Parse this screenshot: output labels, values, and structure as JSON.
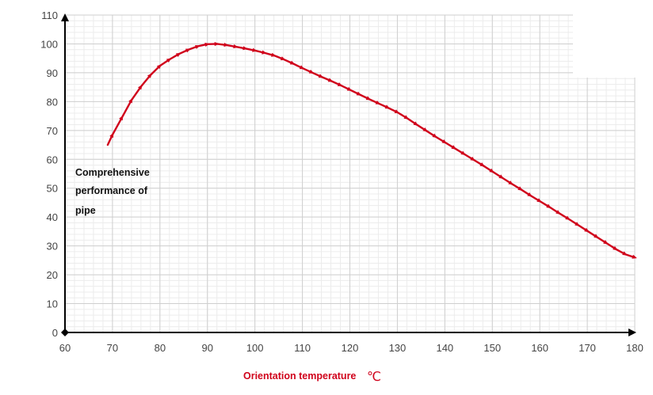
{
  "chart_data": {
    "type": "line",
    "title": "",
    "xlabel": "Orientation temperature",
    "xunit": "℃",
    "ylabel_lines": [
      "Comprehensive",
      "performance of",
      "pipe"
    ],
    "xlim": [
      60,
      180
    ],
    "ylim": [
      0,
      110
    ],
    "xticks": [
      60,
      70,
      80,
      90,
      100,
      110,
      120,
      130,
      140,
      150,
      160,
      170,
      180
    ],
    "yticks": [
      0,
      10,
      20,
      30,
      40,
      50,
      60,
      70,
      80,
      90,
      100,
      110
    ],
    "grid": true,
    "series": [
      {
        "color": "#d0021b",
        "x": [
          69,
          70,
          72,
          74,
          76,
          78,
          80,
          82,
          84,
          86,
          88,
          90,
          92,
          94,
          96,
          98,
          100,
          102,
          104,
          106,
          108,
          110,
          112,
          114,
          116,
          118,
          120,
          122,
          124,
          126,
          128,
          130,
          132,
          134,
          136,
          138,
          140,
          142,
          144,
          146,
          148,
          150,
          152,
          154,
          156,
          158,
          160,
          162,
          164,
          166,
          168,
          170,
          172,
          174,
          176,
          178,
          180
        ],
        "y": [
          65,
          68.5,
          74.5,
          80.5,
          85.2,
          89.2,
          92.4,
          94.6,
          96.5,
          98,
          99.2,
          99.9,
          100,
          99.6,
          99,
          98.4,
          97.7,
          96.9,
          96,
          94.7,
          93.2,
          91.6,
          90.1,
          88.6,
          87.2,
          85.7,
          84.1,
          82.5,
          80.9,
          79.4,
          77.9,
          76.3,
          74.3,
          72.1,
          70,
          67.9,
          65.9,
          63.9,
          61.9,
          59.9,
          57.9,
          55.8,
          53.7,
          51.6,
          49.6,
          47.5,
          45.5,
          43.5,
          41.4,
          39.4,
          37.3,
          35.2,
          33.1,
          31,
          28.9,
          27.1,
          26
        ]
      }
    ]
  }
}
